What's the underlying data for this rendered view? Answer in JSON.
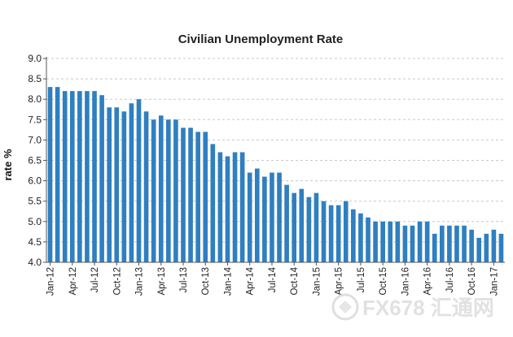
{
  "chart_data": {
    "type": "bar",
    "title": "Civilian Unemployment Rate",
    "xlabel": "",
    "ylabel": "rate %",
    "ylim": [
      4.0,
      9.0
    ],
    "yticks": [
      "4.0",
      "4.5",
      "5.0",
      "5.5",
      "6.0",
      "6.5",
      "7.0",
      "7.5",
      "8.0",
      "8.5",
      "9.0"
    ],
    "grid": true,
    "legend": "none",
    "color": "#2f7fc1",
    "categories": [
      "Jan-12",
      "Feb-12",
      "Mar-12",
      "Apr-12",
      "May-12",
      "Jun-12",
      "Jul-12",
      "Aug-12",
      "Sep-12",
      "Oct-12",
      "Nov-12",
      "Dec-12",
      "Jan-13",
      "Feb-13",
      "Mar-13",
      "Apr-13",
      "May-13",
      "Jun-13",
      "Jul-13",
      "Aug-13",
      "Sep-13",
      "Oct-13",
      "Nov-13",
      "Dec-13",
      "Jan-14",
      "Feb-14",
      "Mar-14",
      "Apr-14",
      "May-14",
      "Jun-14",
      "Jul-14",
      "Aug-14",
      "Sep-14",
      "Oct-14",
      "Nov-14",
      "Dec-14",
      "Jan-15",
      "Feb-15",
      "Mar-15",
      "Apr-15",
      "May-15",
      "Jun-15",
      "Jul-15",
      "Aug-15",
      "Sep-15",
      "Oct-15",
      "Nov-15",
      "Dec-15",
      "Jan-16",
      "Feb-16",
      "Mar-16",
      "Apr-16",
      "May-16",
      "Jun-16",
      "Jul-16",
      "Aug-16",
      "Sep-16",
      "Oct-16",
      "Nov-16",
      "Dec-16",
      "Jan-17",
      "Feb-17"
    ],
    "values": [
      8.3,
      8.3,
      8.2,
      8.2,
      8.2,
      8.2,
      8.2,
      8.1,
      7.8,
      7.8,
      7.7,
      7.9,
      8.0,
      7.7,
      7.5,
      7.6,
      7.5,
      7.5,
      7.3,
      7.3,
      7.2,
      7.2,
      6.9,
      6.7,
      6.6,
      6.7,
      6.7,
      6.2,
      6.3,
      6.1,
      6.2,
      6.2,
      5.9,
      5.7,
      5.8,
      5.6,
      5.7,
      5.5,
      5.4,
      5.4,
      5.5,
      5.3,
      5.2,
      5.1,
      5.0,
      5.0,
      5.0,
      5.0,
      4.9,
      4.9,
      5.0,
      5.0,
      4.7,
      4.9,
      4.9,
      4.9,
      4.9,
      4.8,
      4.6,
      4.7,
      4.8,
      4.7
    ],
    "xtick_labels": [
      {
        "index": 0,
        "label": "Jan-12"
      },
      {
        "index": 3,
        "label": "Apr-12"
      },
      {
        "index": 6,
        "label": "Jul-12"
      },
      {
        "index": 9,
        "label": "Oct-12"
      },
      {
        "index": 12,
        "label": "Jan-13"
      },
      {
        "index": 15,
        "label": "Apr-13"
      },
      {
        "index": 18,
        "label": "Jul-13"
      },
      {
        "index": 21,
        "label": "Oct-13"
      },
      {
        "index": 24,
        "label": "Jan-14"
      },
      {
        "index": 27,
        "label": "Apr-14"
      },
      {
        "index": 30,
        "label": "Jul-14"
      },
      {
        "index": 33,
        "label": "Oct-14"
      },
      {
        "index": 36,
        "label": "Jan-15"
      },
      {
        "index": 39,
        "label": "Apr-15"
      },
      {
        "index": 42,
        "label": "Jul-15"
      },
      {
        "index": 45,
        "label": "Oct-15"
      },
      {
        "index": 48,
        "label": "Jan-16"
      },
      {
        "index": 51,
        "label": "Apr-16"
      },
      {
        "index": 54,
        "label": "Jul-16"
      },
      {
        "index": 57,
        "label": "Oct-16"
      },
      {
        "index": 60,
        "label": "Jan-17"
      }
    ]
  },
  "watermark": {
    "text": "FX678 汇通网"
  }
}
